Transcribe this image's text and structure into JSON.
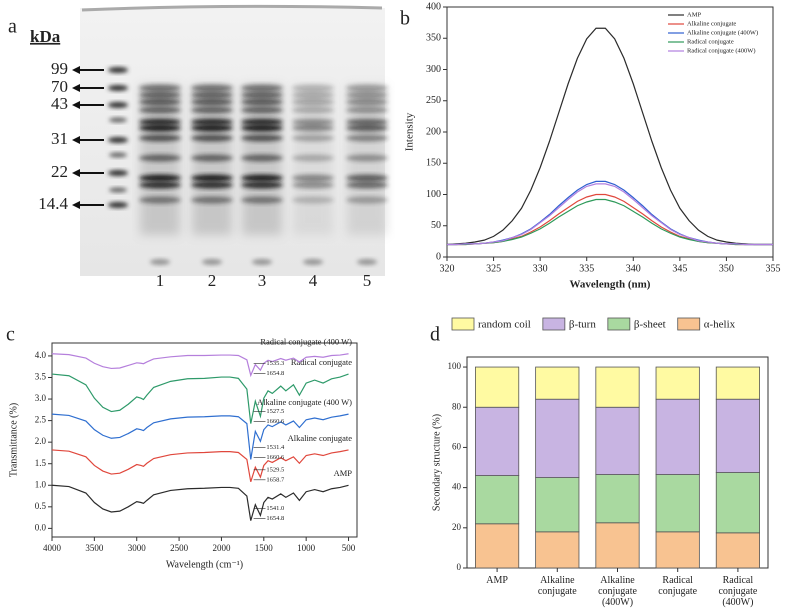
{
  "gel": {
    "panel_label": "a",
    "unit": "kDa",
    "markers": [
      99,
      70,
      43,
      31,
      22,
      14.4
    ],
    "lanes": [
      1,
      2,
      3,
      4,
      5
    ]
  },
  "chart_data": [
    {
      "type": "line",
      "panel_label": "b",
      "x_label": "Wavelength (nm)",
      "y_label": "Intensity",
      "legend": "upper right",
      "xlim": [
        320,
        355
      ],
      "xticks": [
        320,
        325,
        330,
        335,
        340,
        345,
        350,
        355
      ],
      "ylim": [
        0,
        400
      ],
      "yticks": [
        0,
        50,
        100,
        150,
        200,
        250,
        300,
        350,
        400
      ],
      "x": [
        320,
        321,
        322,
        323,
        324,
        325,
        326,
        327,
        328,
        329,
        330,
        331,
        332,
        333,
        334,
        335,
        336,
        337,
        338,
        339,
        340,
        341,
        342,
        343,
        344,
        345,
        346,
        347,
        348,
        349,
        350,
        351,
        352,
        353,
        354,
        355
      ],
      "series": [
        {
          "name": "AMP",
          "color": "#2b2b2b",
          "values": [
            20,
            21,
            22,
            24,
            27,
            33,
            43,
            58,
            78,
            107,
            143,
            185,
            231,
            277,
            318,
            349,
            366,
            366,
            349,
            318,
            277,
            231,
            185,
            143,
            107,
            78,
            58,
            43,
            33,
            27,
            24,
            22,
            21,
            20,
            20,
            20
          ]
        },
        {
          "name": "Alkaline conjugate",
          "color": "#e0473c",
          "values": [
            20,
            20,
            20,
            21,
            22,
            23,
            25,
            29,
            33,
            40,
            48,
            58,
            69,
            79,
            89,
            96,
            100,
            100,
            96,
            89,
            79,
            69,
            58,
            48,
            40,
            33,
            29,
            25,
            23,
            22,
            21,
            20,
            20,
            20,
            20,
            20
          ]
        },
        {
          "name": "Alkaline conjugate (400W)",
          "color": "#2f5fd0",
          "values": [
            20,
            20,
            21,
            21,
            22,
            24,
            27,
            31,
            37,
            45,
            56,
            68,
            82,
            95,
            107,
            116,
            121,
            121,
            116,
            107,
            95,
            82,
            68,
            56,
            45,
            37,
            31,
            27,
            24,
            22,
            21,
            21,
            20,
            20,
            20,
            20
          ]
        },
        {
          "name": "Radical conjugate",
          "color": "#2e9a5a",
          "values": [
            20,
            20,
            20,
            21,
            22,
            23,
            25,
            28,
            32,
            38,
            45,
            54,
            64,
            73,
            82,
            88,
            92,
            92,
            88,
            82,
            73,
            64,
            54,
            45,
            38,
            32,
            28,
            25,
            23,
            22,
            21,
            20,
            20,
            20,
            20,
            20
          ]
        },
        {
          "name": "Radical conjugate (400W)",
          "color": "#b07fe0",
          "values": [
            20,
            20,
            21,
            21,
            22,
            24,
            26,
            31,
            36,
            44,
            55,
            66,
            79,
            92,
            104,
            113,
            117,
            117,
            113,
            104,
            92,
            79,
            66,
            55,
            44,
            36,
            31,
            26,
            24,
            22,
            21,
            21,
            20,
            20,
            20,
            20
          ]
        }
      ]
    },
    {
      "type": "line",
      "panel_label": "c",
      "x_label": "Wavelength (cm⁻¹)",
      "y_label": "Transmittance (%)",
      "xlim": [
        4000,
        400
      ],
      "xticks": [
        4000,
        3500,
        3000,
        2500,
        2000,
        1500,
        1000,
        500
      ],
      "ylim": [
        -0.2,
        4.3
      ],
      "yticks": [
        {
          "value": 0,
          "label": "0.0"
        },
        0.5,
        {
          "value": 1,
          "label": "1.0"
        },
        1.5,
        {
          "value": 2,
          "label": "2.0"
        },
        2.5,
        {
          "value": 3,
          "label": "3.0"
        },
        3.5,
        {
          "value": 4,
          "label": "4.0"
        }
      ],
      "x": [
        4000,
        3800,
        3600,
        3500,
        3400,
        3300,
        3200,
        3100,
        3000,
        2950,
        2920,
        2880,
        2800,
        2600,
        2400,
        2200,
        2000,
        1900,
        1800,
        1700,
        1654,
        1600,
        1540,
        1500,
        1450,
        1400,
        1300,
        1240,
        1150,
        1080,
        1000,
        900,
        800,
        700,
        600,
        500
      ],
      "series": [
        {
          "name": "AMP",
          "color": "#2b2b2b",
          "peak_labels": [
            "1541.0",
            "1654.8"
          ],
          "values": [
            1.0,
            0.97,
            0.82,
            0.6,
            0.45,
            0.38,
            0.4,
            0.5,
            0.62,
            0.6,
            0.58,
            0.65,
            0.78,
            0.88,
            0.92,
            0.93,
            0.95,
            0.95,
            0.93,
            0.75,
            0.18,
            0.55,
            0.3,
            0.6,
            0.72,
            0.68,
            0.8,
            0.72,
            0.82,
            0.65,
            0.85,
            0.9,
            0.85,
            0.92,
            0.95,
            1.0
          ]
        },
        {
          "name": "Alkaline conjugate",
          "color": "#e0473c",
          "peak_labels": [
            "1529.5",
            "1658.7"
          ],
          "values": [
            1.82,
            1.79,
            1.66,
            1.46,
            1.33,
            1.26,
            1.28,
            1.37,
            1.48,
            1.46,
            1.44,
            1.51,
            1.62,
            1.71,
            1.75,
            1.76,
            1.78,
            1.78,
            1.76,
            1.6,
            1.08,
            1.42,
            1.19,
            1.46,
            1.57,
            1.53,
            1.64,
            1.57,
            1.66,
            1.51,
            1.69,
            1.73,
            1.69,
            1.75,
            1.78,
            1.82
          ]
        },
        {
          "name": "Alkaline conjugate (400 W)",
          "color": "#2f6fd0",
          "peak_labels": [
            "1531.4",
            "1660.6"
          ],
          "values": [
            2.65,
            2.62,
            2.49,
            2.29,
            2.16,
            2.09,
            2.11,
            2.2,
            2.31,
            2.29,
            2.27,
            2.34,
            2.45,
            2.54,
            2.58,
            2.59,
            2.61,
            2.61,
            2.59,
            2.43,
            1.6,
            2.25,
            2.02,
            2.29,
            2.4,
            2.36,
            2.47,
            2.4,
            2.49,
            2.34,
            2.52,
            2.56,
            2.52,
            2.58,
            2.61,
            2.65
          ]
        },
        {
          "name": "Radical conjugate",
          "color": "#2e9a6a",
          "peak_labels": [
            "1527.5",
            "1660.6"
          ],
          "values": [
            3.58,
            3.54,
            3.33,
            3.02,
            2.81,
            2.71,
            2.74,
            2.88,
            3.05,
            3.02,
            2.99,
            3.09,
            3.27,
            3.41,
            3.47,
            3.48,
            3.51,
            3.51,
            3.48,
            3.23,
            2.43,
            2.95,
            2.6,
            3.02,
            3.19,
            3.13,
            3.3,
            3.19,
            3.33,
            3.09,
            3.37,
            3.44,
            3.37,
            3.47,
            3.51,
            3.58
          ]
        },
        {
          "name": "Radical conjugate (400 W)",
          "color": "#b57fdc",
          "peak_labels": [
            "1535.3",
            "1654.8"
          ],
          "values": [
            4.05,
            4.03,
            3.95,
            3.83,
            3.75,
            3.71,
            3.72,
            3.78,
            3.84,
            3.83,
            3.82,
            3.86,
            3.93,
            3.98,
            4.01,
            4.01,
            4.02,
            4.02,
            4.01,
            3.91,
            3.55,
            3.8,
            3.67,
            3.83,
            3.9,
            3.87,
            3.94,
            3.9,
            3.95,
            3.86,
            3.97,
            3.99,
            3.97,
            4.01,
            4.02,
            4.05
          ]
        }
      ]
    },
    {
      "type": "stacked_bar",
      "panel_label": "d",
      "y_label": "Secondary structure (%)",
      "legend": "top",
      "ylim": [
        0,
        105
      ],
      "yticks": [
        0,
        20,
        40,
        60,
        80,
        100
      ],
      "categories": [
        "AMP",
        "Alkaline conjugate",
        "Alkaline conjugate (400W)",
        "Radical conjugate",
        "Radical conjugate (400W)"
      ],
      "series": [
        {
          "name": "α-helix",
          "color": "#f8c391",
          "values": [
            22,
            18,
            22.5,
            18,
            17.5
          ]
        },
        {
          "name": "β-sheet",
          "color": "#a9d9a0",
          "values": [
            24,
            27,
            24,
            28.5,
            30
          ]
        },
        {
          "name": "β-turn",
          "color": "#c8b4e2",
          "values": [
            34,
            39,
            33.5,
            37.5,
            36.5
          ]
        },
        {
          "name": "random coil",
          "color": "#fffaa2",
          "values": [
            20,
            16,
            20,
            16,
            16
          ]
        }
      ]
    }
  ]
}
